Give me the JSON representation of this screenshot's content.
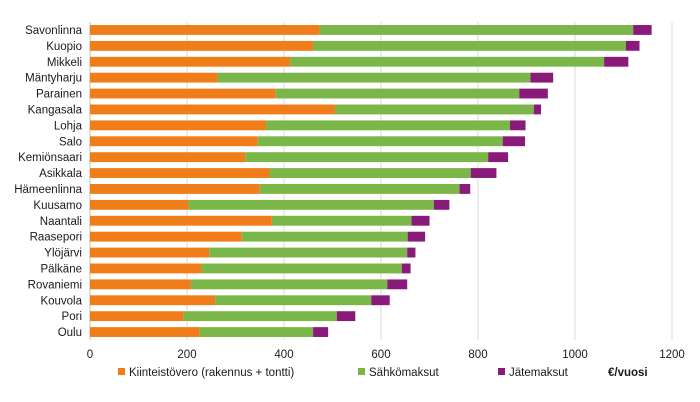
{
  "chart_data": {
    "type": "bar",
    "orientation": "horizontal",
    "stacked": true,
    "categories": [
      "Savonlinna",
      "Kuopio",
      "Mikkeli",
      "Mäntyharju",
      "Parainen",
      "Kangasala",
      "Lohja",
      "Salo",
      "Kemiönsaari",
      "Asikkala",
      "Hämeenlinna",
      "Kuusamo",
      "Naantali",
      "Raasepori",
      "Ylöjärvi",
      "Pälkäne",
      "Rovaniemi",
      "Kouvola",
      "Pori",
      "Oulu"
    ],
    "series": [
      {
        "name": "Kiinteistövero (rakennus + tontti)",
        "color": "#f07d19",
        "values": [
          473,
          460,
          413,
          263,
          383,
          505,
          363,
          346,
          320,
          370,
          350,
          203,
          375,
          313,
          246,
          230,
          208,
          258,
          193,
          226
        ]
      },
      {
        "name": "Sähkömaksut",
        "color": "#7ab648",
        "values": [
          647,
          645,
          647,
          645,
          502,
          410,
          503,
          505,
          501,
          415,
          412,
          506,
          288,
          342,
          408,
          413,
          405,
          322,
          316,
          234
        ]
      },
      {
        "name": "Jätemaksut",
        "color": "#8a1a7a",
        "values": [
          38,
          28,
          50,
          47,
          59,
          15,
          32,
          46,
          41,
          53,
          22,
          32,
          37,
          36,
          17,
          18,
          41,
          38,
          38,
          31
        ]
      }
    ],
    "xlim": [
      0,
      1200
    ],
    "xticks": [
      0,
      200,
      400,
      600,
      800,
      1000,
      1200
    ],
    "unit_label": "€/vuosi",
    "grid": true,
    "legend_position": "bottom"
  }
}
